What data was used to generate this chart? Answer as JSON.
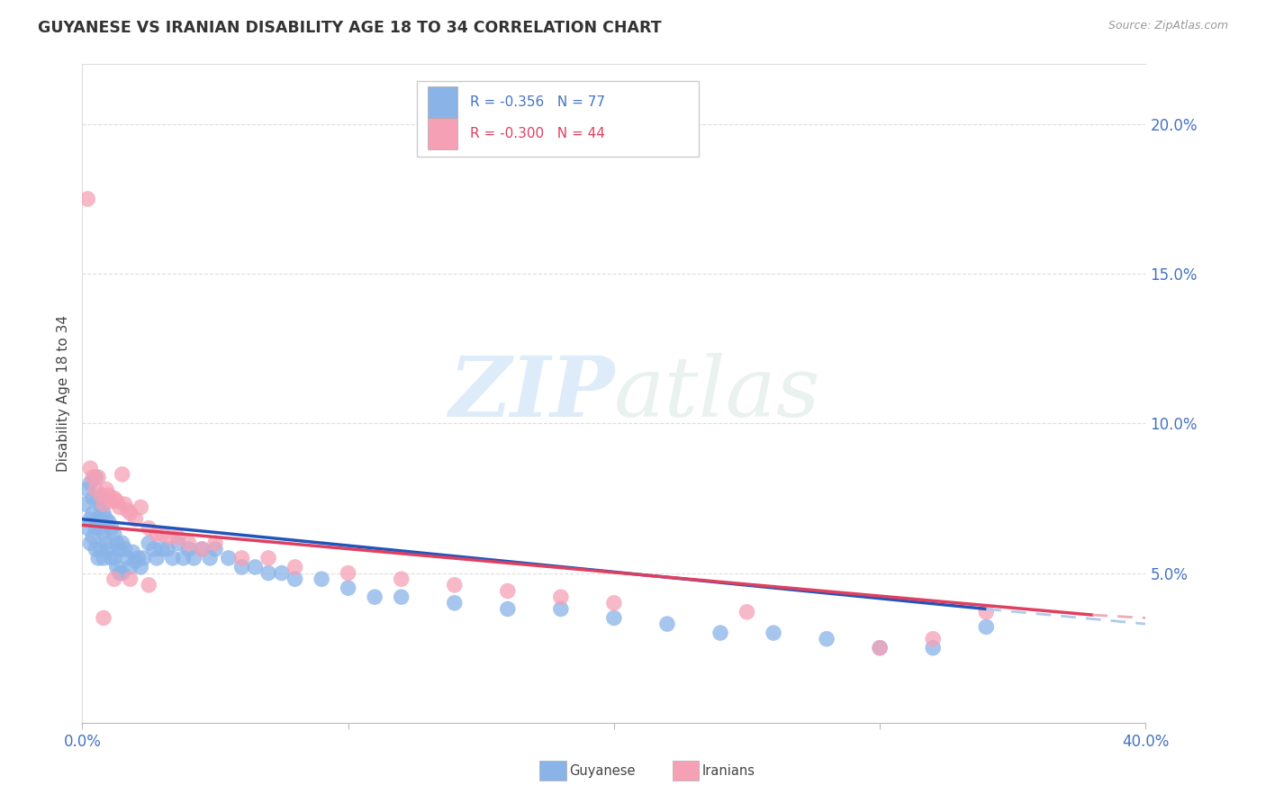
{
  "title": "GUYANESE VS IRANIAN DISABILITY AGE 18 TO 34 CORRELATION CHART",
  "source": "Source: ZipAtlas.com",
  "ylabel": "Disability Age 18 to 34",
  "xlim": [
    0.0,
    0.4
  ],
  "ylim": [
    0.0,
    0.22
  ],
  "x_tick_vals": [
    0.0,
    0.4
  ],
  "x_tick_labels": [
    "0.0%",
    "40.0%"
  ],
  "y_ticks_right": [
    0.05,
    0.1,
    0.15,
    0.2
  ],
  "y_tick_labels_right": [
    "5.0%",
    "10.0%",
    "15.0%",
    "20.0%"
  ],
  "background_color": "#ffffff",
  "guyanese_color": "#8ab4e8",
  "iranian_color": "#f5a0b5",
  "trend_guyanese_color": "#2255bb",
  "trend_iranian_color": "#e04060",
  "trend_guyanese_ext_color": "#aaccee",
  "trend_iranian_ext_color": "#f0aabb",
  "legend_R_guyanese": "-0.356",
  "legend_N_guyanese": "77",
  "legend_R_iranian": "-0.300",
  "legend_N_iranian": "44",
  "guyanese_x": [
    0.001,
    0.002,
    0.002,
    0.003,
    0.003,
    0.003,
    0.004,
    0.004,
    0.004,
    0.005,
    0.005,
    0.005,
    0.006,
    0.006,
    0.006,
    0.007,
    0.007,
    0.007,
    0.008,
    0.008,
    0.008,
    0.009,
    0.009,
    0.01,
    0.01,
    0.011,
    0.011,
    0.012,
    0.012,
    0.013,
    0.013,
    0.014,
    0.014,
    0.015,
    0.015,
    0.016,
    0.017,
    0.018,
    0.019,
    0.02,
    0.021,
    0.022,
    0.023,
    0.025,
    0.027,
    0.028,
    0.03,
    0.032,
    0.034,
    0.036,
    0.038,
    0.04,
    0.042,
    0.045,
    0.048,
    0.05,
    0.055,
    0.06,
    0.065,
    0.07,
    0.075,
    0.08,
    0.09,
    0.1,
    0.11,
    0.12,
    0.14,
    0.16,
    0.18,
    0.2,
    0.22,
    0.24,
    0.26,
    0.28,
    0.3,
    0.32,
    0.34
  ],
  "guyanese_y": [
    0.073,
    0.078,
    0.065,
    0.08,
    0.068,
    0.06,
    0.075,
    0.07,
    0.062,
    0.082,
    0.065,
    0.058,
    0.075,
    0.068,
    0.055,
    0.072,
    0.065,
    0.058,
    0.07,
    0.063,
    0.055,
    0.068,
    0.06,
    0.067,
    0.058,
    0.065,
    0.055,
    0.063,
    0.055,
    0.06,
    0.052,
    0.058,
    0.05,
    0.06,
    0.05,
    0.058,
    0.055,
    0.052,
    0.057,
    0.054,
    0.055,
    0.052,
    0.055,
    0.06,
    0.058,
    0.055,
    0.058,
    0.058,
    0.055,
    0.06,
    0.055,
    0.058,
    0.055,
    0.058,
    0.055,
    0.058,
    0.055,
    0.052,
    0.052,
    0.05,
    0.05,
    0.048,
    0.048,
    0.045,
    0.042,
    0.042,
    0.04,
    0.038,
    0.038,
    0.035,
    0.033,
    0.03,
    0.03,
    0.028,
    0.025,
    0.025,
    0.032
  ],
  "iranian_x": [
    0.002,
    0.003,
    0.004,
    0.005,
    0.006,
    0.007,
    0.008,
    0.009,
    0.01,
    0.011,
    0.012,
    0.013,
    0.014,
    0.015,
    0.016,
    0.017,
    0.018,
    0.02,
    0.022,
    0.025,
    0.028,
    0.03,
    0.033,
    0.036,
    0.04,
    0.045,
    0.05,
    0.06,
    0.07,
    0.08,
    0.1,
    0.12,
    0.14,
    0.16,
    0.18,
    0.2,
    0.25,
    0.3,
    0.32,
    0.34,
    0.025,
    0.018,
    0.012,
    0.008
  ],
  "iranian_y": [
    0.175,
    0.085,
    0.082,
    0.078,
    0.082,
    0.076,
    0.073,
    0.078,
    0.076,
    0.074,
    0.075,
    0.074,
    0.072,
    0.083,
    0.073,
    0.071,
    0.07,
    0.068,
    0.072,
    0.065,
    0.063,
    0.063,
    0.062,
    0.062,
    0.06,
    0.058,
    0.06,
    0.055,
    0.055,
    0.052,
    0.05,
    0.048,
    0.046,
    0.044,
    0.042,
    0.04,
    0.037,
    0.025,
    0.028,
    0.037,
    0.046,
    0.048,
    0.048,
    0.035
  ],
  "trend_guy_x0": 0.0,
  "trend_guy_y0": 0.068,
  "trend_guy_x1": 0.34,
  "trend_guy_y1": 0.038,
  "trend_guy_dash_x1": 0.4,
  "trend_guy_dash_y1": 0.033,
  "trend_iran_x0": 0.0,
  "trend_iran_y0": 0.066,
  "trend_iran_x1": 0.38,
  "trend_iran_y1": 0.036,
  "trend_iran_dash_x1": 0.4,
  "trend_iran_dash_y1": 0.035
}
